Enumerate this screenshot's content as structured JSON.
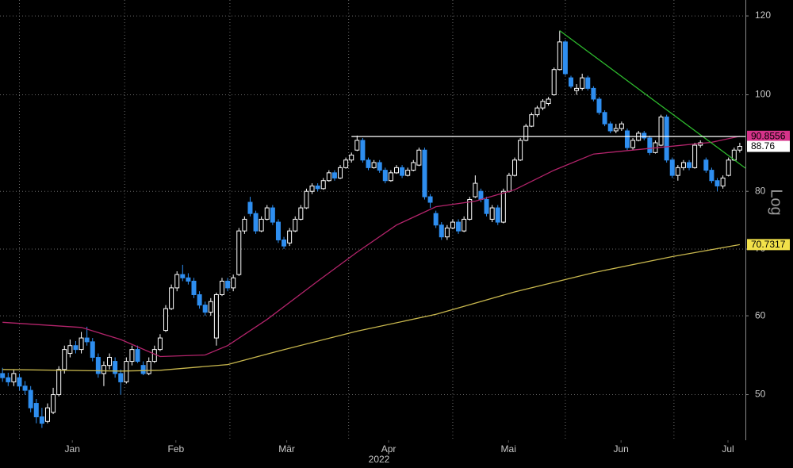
{
  "chart_data": {
    "type": "candlestick",
    "log_y": true,
    "grid": true,
    "scale_label": "Log",
    "year_label": "2022",
    "up_color": "#ffffff",
    "down_color": "#2e8ef0",
    "last_tag_color": "#ffffff",
    "xlim": [
      -0.45,
      132
    ],
    "ylim": [
      45,
      124.5
    ],
    "yticks": [
      50,
      60,
      70,
      80,
      100,
      120
    ],
    "xticks": [
      {
        "value": 12.4,
        "label": "Jan"
      },
      {
        "value": 30.8,
        "label": "Feb"
      },
      {
        "value": 50.5,
        "label": "Mär"
      },
      {
        "value": 68.6,
        "label": "Apr"
      },
      {
        "value": 89.9,
        "label": "Mai"
      },
      {
        "value": 109.9,
        "label": "Jun"
      },
      {
        "value": 128.9,
        "label": "Jul"
      }
    ],
    "xgrid": [
      3,
      21.7,
      40.4,
      61.5,
      80,
      100,
      119.3
    ],
    "candles": [
      [
        52.5,
        53.2,
        51.5,
        52
      ],
      [
        52,
        52.6,
        51,
        51.5
      ],
      [
        51.5,
        53,
        51,
        52.5
      ],
      [
        52,
        52.5,
        50.5,
        51
      ],
      [
        51,
        51.6,
        50,
        50.5
      ],
      [
        50.5,
        51,
        48,
        48.5
      ],
      [
        49,
        49.5,
        46.8,
        47.5
      ],
      [
        47.5,
        48.5,
        46.3,
        46.8
      ],
      [
        47,
        49,
        46.8,
        48.5
      ],
      [
        48,
        50.8,
        47.8,
        50
      ],
      [
        50,
        53.4,
        49.8,
        53
      ],
      [
        53,
        56,
        52.5,
        55.5
      ],
      [
        55,
        56.8,
        54.5,
        56
      ],
      [
        56,
        56.6,
        55,
        55.5
      ],
      [
        55.5,
        57.8,
        55,
        57
      ],
      [
        57,
        58.5,
        56,
        56.5
      ],
      [
        56.5,
        57,
        54,
        54.5
      ],
      [
        54.5,
        55,
        52,
        52.5
      ],
      [
        52.5,
        54,
        51,
        53.5
      ],
      [
        53.5,
        55,
        53,
        54.5
      ],
      [
        54,
        54.5,
        52,
        52.5
      ],
      [
        52.5,
        53,
        50,
        51.5
      ],
      [
        51.5,
        54.5,
        51.3,
        54
      ],
      [
        54,
        56,
        53.5,
        55.5
      ],
      [
        55.5,
        56,
        53.8,
        54
      ],
      [
        53.5,
        54,
        52.3,
        52.5
      ],
      [
        52.5,
        54.5,
        52.3,
        54
      ],
      [
        54,
        56,
        53.8,
        55.5
      ],
      [
        55.5,
        57.5,
        55.3,
        57
      ],
      [
        58,
        61.5,
        57.8,
        61
      ],
      [
        61,
        64.5,
        60.8,
        64
      ],
      [
        64,
        66.5,
        63.5,
        66
      ],
      [
        66,
        67.5,
        65,
        65.5
      ],
      [
        65.5,
        66.2,
        64.5,
        65
      ],
      [
        65,
        65.5,
        62.5,
        63
      ],
      [
        63,
        63.5,
        61,
        61.5
      ],
      [
        61.5,
        62,
        60,
        60.5
      ],
      [
        60.5,
        62.5,
        60,
        62
      ],
      [
        57,
        63.3,
        56,
        63
      ],
      [
        63,
        65.5,
        62.8,
        65
      ],
      [
        65,
        65.5,
        63.5,
        64
      ],
      [
        64,
        66,
        63.5,
        65.5
      ],
      [
        66,
        73.5,
        65.8,
        73
      ],
      [
        73,
        75.5,
        72.5,
        75
      ],
      [
        78,
        79,
        75.5,
        76
      ],
      [
        76,
        76.5,
        72.5,
        73
      ],
      [
        73,
        75.5,
        72.8,
        75
      ],
      [
        75,
        77.5,
        74.8,
        77
      ],
      [
        77,
        77.5,
        74,
        74.5
      ],
      [
        74.5,
        75,
        71,
        71.5
      ],
      [
        71.5,
        72,
        70,
        70.5
      ],
      [
        71,
        73.5,
        70.5,
        73
      ],
      [
        73,
        75.5,
        72.8,
        75
      ],
      [
        75,
        77.5,
        74.8,
        77
      ],
      [
        77,
        80.5,
        76.8,
        80
      ],
      [
        80,
        81.5,
        79.5,
        81
      ],
      [
        81,
        81.5,
        80,
        80.5
      ],
      [
        80.5,
        82.5,
        80.3,
        82
      ],
      [
        82,
        84,
        81.8,
        83.5
      ],
      [
        83.5,
        84,
        82,
        82.5
      ],
      [
        82.5,
        85,
        82.3,
        84.5
      ],
      [
        84.5,
        86.5,
        84.3,
        86
      ],
      [
        86,
        87.5,
        85.5,
        87
      ],
      [
        88,
        91,
        87.8,
        90
      ],
      [
        90,
        90.5,
        85.5,
        86
      ],
      [
        86,
        86.5,
        84,
        84.5
      ],
      [
        84.5,
        86,
        84.3,
        85.5
      ],
      [
        85.5,
        86,
        83.5,
        84
      ],
      [
        84,
        84.5,
        81.5,
        82
      ],
      [
        82,
        84,
        81.8,
        83.5
      ],
      [
        83.5,
        85,
        83.3,
        84.5
      ],
      [
        84.5,
        85,
        82.5,
        83
      ],
      [
        83,
        84.5,
        82.8,
        84
      ],
      [
        84,
        86,
        83.8,
        85.5
      ],
      [
        85,
        88.5,
        84.8,
        88
      ],
      [
        88,
        88.5,
        78.5,
        79
      ],
      [
        79,
        79.5,
        77,
        78
      ],
      [
        76,
        76.5,
        73.5,
        74
      ],
      [
        74,
        74.5,
        71.5,
        72
      ],
      [
        72,
        74,
        71.5,
        73.5
      ],
      [
        73.5,
        75,
        73.3,
        74.5
      ],
      [
        74.5,
        75,
        72.5,
        73
      ],
      [
        73,
        75.5,
        72.8,
        75
      ],
      [
        75,
        79,
        74.8,
        78.5
      ],
      [
        79,
        83,
        78.8,
        81.5
      ],
      [
        80,
        80.5,
        78,
        78.5
      ],
      [
        78.5,
        79,
        75.5,
        76
      ],
      [
        75,
        77.5,
        74.5,
        77
      ],
      [
        77,
        77.5,
        74,
        74.5
      ],
      [
        74.5,
        80.5,
        74.3,
        80
      ],
      [
        80,
        83.5,
        79.8,
        83
      ],
      [
        83,
        86.5,
        82.8,
        86
      ],
      [
        86,
        90.5,
        85.8,
        90
      ],
      [
        90,
        93.5,
        89.8,
        93
      ],
      [
        93,
        96,
        92.8,
        95.5
      ],
      [
        95.5,
        97.5,
        95,
        97
      ],
      [
        97,
        99,
        96.5,
        98.5
      ],
      [
        98,
        99.5,
        97.5,
        99
      ],
      [
        100,
        106.5,
        99.8,
        106
      ],
      [
        106,
        116,
        105.8,
        113
      ],
      [
        113,
        113.5,
        104.5,
        105
      ],
      [
        104,
        104.5,
        101.5,
        102
      ],
      [
        101,
        102.5,
        100,
        101.5
      ],
      [
        101.5,
        105,
        101,
        104
      ],
      [
        104,
        104.5,
        101,
        101.5
      ],
      [
        101.5,
        102,
        98.5,
        99
      ],
      [
        99,
        99.5,
        95.5,
        96
      ],
      [
        96,
        96.5,
        93,
        93.5
      ],
      [
        93.5,
        94,
        91.5,
        92
      ],
      [
        92,
        93.5,
        91.5,
        92.5
      ],
      [
        92.5,
        94,
        92,
        93.5
      ],
      [
        92,
        92.5,
        88,
        88.5
      ],
      [
        88.5,
        90.5,
        88,
        90
      ],
      [
        90,
        92,
        89.8,
        91.5
      ],
      [
        91.5,
        92,
        90,
        90.5
      ],
      [
        90.5,
        91,
        87,
        87.5
      ],
      [
        87.5,
        90,
        87.3,
        89.5
      ],
      [
        89,
        95.5,
        88.8,
        95
      ],
      [
        95,
        95.5,
        85.5,
        86
      ],
      [
        86,
        86.5,
        82.5,
        83
      ],
      [
        83,
        85,
        82,
        84.5
      ],
      [
        84.5,
        86,
        84,
        85.5
      ],
      [
        85.5,
        86,
        84,
        84.5
      ],
      [
        84.5,
        89.5,
        84.3,
        89
      ],
      [
        89,
        90,
        88.5,
        89.5
      ],
      [
        86,
        86.5,
        83.5,
        84
      ],
      [
        84,
        84.5,
        81.5,
        82
      ],
      [
        82,
        82.5,
        80,
        81
      ],
      [
        81,
        83,
        80.5,
        82.5
      ],
      [
        83,
        86.5,
        82.8,
        86
      ],
      [
        86,
        88.5,
        85.8,
        88
      ],
      [
        88,
        89.5,
        87.5,
        88.76
      ]
    ],
    "lines": [
      {
        "x": [
          0,
          14,
          21,
          28,
          36,
          40,
          47,
          56,
          63,
          70,
          77,
          84,
          91,
          98,
          105,
          112,
          119,
          126,
          131
        ],
        "values": [
          59.1,
          58.4,
          56.8,
          54.6,
          54.8,
          56,
          59.5,
          65,
          69.5,
          74,
          77.2,
          78.2,
          80.3,
          84,
          87.2,
          88,
          88.8,
          89.6,
          90.8556
        ],
        "color": "#b3246b",
        "tag_color": "#d6338a"
      },
      {
        "x": [
          0,
          21,
          28,
          40,
          49,
          63,
          77,
          91,
          105,
          119,
          131
        ],
        "values": [
          53,
          52.8,
          52.9,
          53.6,
          55.3,
          57.9,
          60.2,
          63.4,
          66.3,
          68.8,
          70.7317
        ],
        "color": "#c9b84e",
        "tag_color": "#f2e14a"
      },
      {
        "x": [
          99,
          132
        ],
        "values": [
          116,
          84.4
        ],
        "color": "#2db82d"
      },
      {
        "x": [
          62,
          132
        ],
        "values": [
          90.8,
          90.8
        ],
        "color": "#ffffff"
      }
    ]
  }
}
